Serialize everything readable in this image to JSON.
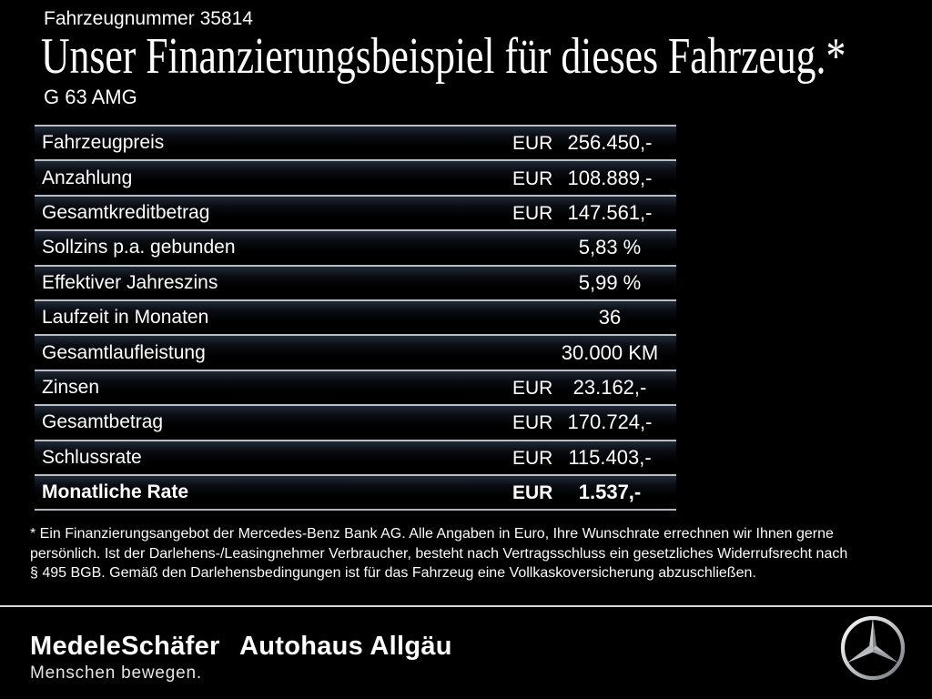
{
  "page": {
    "vehicle_number": "Fahrzeugnummer 35814",
    "title": "Unser Finanzierungsbeispiel für dieses Fahrzeug.*",
    "model": "G 63 AMG"
  },
  "table": {
    "rows": [
      {
        "label": "Fahrzeugpreis",
        "currency": "EUR",
        "value": "256.450,-",
        "bold": false
      },
      {
        "label": "Anzahlung",
        "currency": "EUR",
        "value": "108.889,-",
        "bold": false
      },
      {
        "label": "Gesamtkreditbetrag",
        "currency": "EUR",
        "value": "147.561,-",
        "bold": false
      },
      {
        "label": "Sollzins p.a. gebunden",
        "currency": "",
        "value": "5,83 %",
        "bold": false
      },
      {
        "label": "Effektiver Jahreszins",
        "currency": "",
        "value": "5,99 %",
        "bold": false
      },
      {
        "label": "Laufzeit in Monaten",
        "currency": "",
        "value": "36",
        "bold": false
      },
      {
        "label": "Gesamtlaufleistung",
        "currency": "",
        "value": "30.000 KM",
        "bold": false
      },
      {
        "label": "Zinsen",
        "currency": "EUR",
        "value": "23.162,-",
        "bold": false
      },
      {
        "label": "Gesamtbetrag",
        "currency": "EUR",
        "value": "170.724,-",
        "bold": false
      },
      {
        "label": "Schlussrate",
        "currency": "EUR",
        "value": "115.403,-",
        "bold": false
      },
      {
        "label": "Monatliche Rate",
        "currency": "EUR",
        "value": "1.537,-",
        "bold": true
      }
    ]
  },
  "footnote": {
    "lines": [
      "* Ein Finanzierungsangebot der Mercedes-Benz Bank AG. Alle Angaben in Euro, Ihre Wunschrate errechnen wir Ihnen gerne",
      "persönlich. Ist der Darlehens-/Leasingnehmer Verbraucher, besteht nach Vertragsschluss ein gesetzliches Widerrufsrecht nach",
      "§ 495 BGB. Gemäß den Darlehensbedingungen ist für das Fahrzeug eine Vollkaskoversicherung abzuschließen."
    ]
  },
  "footer": {
    "dealer_name_1": "MedeleSchäfer",
    "dealer_name_2": "Autohaus Allgäu",
    "slogan": "Menschen bewegen.",
    "brand_icon": "mercedes-benz-star"
  },
  "colors": {
    "background": "#000000",
    "text": "#ffffff",
    "table_row_border": "#b6bec9",
    "table_row_glow": "#212a37",
    "footer_divider": "#d6d7da",
    "star_silver_light": "#f4f4f4",
    "star_silver_dark": "#787d84"
  }
}
